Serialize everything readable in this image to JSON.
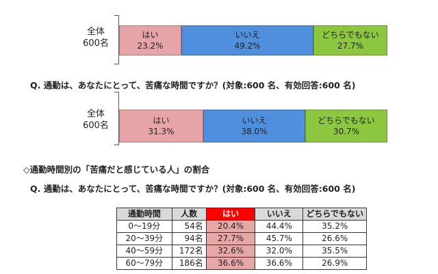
{
  "colors": {
    "yes": "#e6a4a8",
    "no": "#4f8fdc",
    "neutral": "#8dc63f",
    "table_header_highlight": "#ff0000",
    "table_cell_highlight": "#e6a7a7"
  },
  "chart_data": [
    {
      "type": "bar",
      "orientation": "horizontal-stacked",
      "categories": [
        "全体\n600名"
      ],
      "group_label": {
        "line1": "全体",
        "line2": "600名"
      },
      "series": [
        {
          "name": "はい",
          "values": [
            23.2
          ],
          "label": "23.2%"
        },
        {
          "name": "いいえ",
          "values": [
            49.2
          ],
          "label": "49.2%"
        },
        {
          "name": "どちらでもない",
          "values": [
            27.7
          ],
          "label": "27.7%"
        }
      ]
    },
    {
      "type": "bar",
      "orientation": "horizontal-stacked",
      "title": "Q. 通勤は、あなたにとって、苦痛な時間ですか？(対象:600 名、有効回答:600 名)",
      "categories": [
        "全体\n600名"
      ],
      "group_label": {
        "line1": "全体",
        "line2": "600名"
      },
      "series": [
        {
          "name": "はい",
          "values": [
            31.3
          ],
          "label": "31.3%"
        },
        {
          "name": "いいえ",
          "values": [
            38.0
          ],
          "label": "38.0%"
        },
        {
          "name": "どちらでもない",
          "values": [
            30.7
          ],
          "label": "30.7%"
        }
      ]
    },
    {
      "type": "table",
      "heading": "◇通勤時間別の「苦痛だと感じている人」の割合",
      "title": "Q. 通勤は、あなたにとって、苦痛な時間ですか？(対象:600 名、有効回答:600 名)",
      "columns": [
        "通勤時間",
        "人数",
        "はい",
        "いいえ",
        "どちらでもない"
      ],
      "rows": [
        [
          "0～19分",
          "54名",
          "20.4%",
          "44.4%",
          "35.2%"
        ],
        [
          "20～39分",
          "94名",
          "27.7%",
          "45.7%",
          "26.6%"
        ],
        [
          "40～59分",
          "172名",
          "32.6%",
          "32.0%",
          "35.5%"
        ],
        [
          "60～79分",
          "186名",
          "36.6%",
          "36.6%",
          "26.9%"
        ]
      ]
    }
  ]
}
